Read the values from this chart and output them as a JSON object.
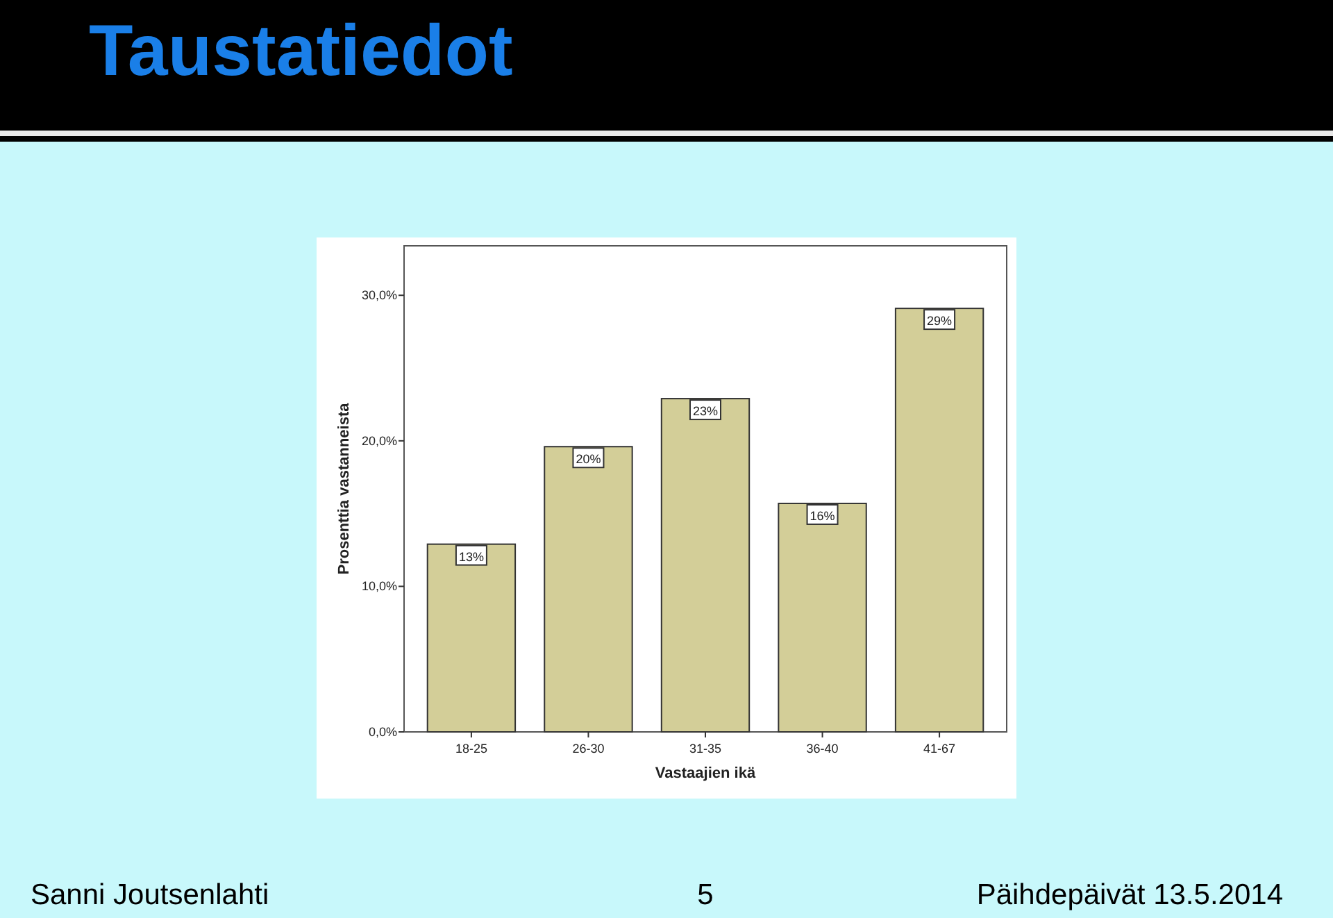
{
  "chart_data": {
    "type": "bar",
    "title": "Taustatiedot",
    "xlabel": "Vastaajien ikä",
    "ylabel": "Prosenttia vastanneista",
    "categories": [
      "18-25",
      "26-30",
      "31-35",
      "36-40",
      "41-67"
    ],
    "values": [
      12.9,
      19.6,
      22.9,
      15.7,
      29.1
    ],
    "value_labels": [
      "13%",
      "20%",
      "23%",
      "16%",
      "29%"
    ],
    "color": "#d3ce98",
    "ylim": [
      0,
      33.4
    ],
    "yticks": [
      {
        "value": 0,
        "label": "0,0%"
      },
      {
        "value": 10,
        "label": "10,0%"
      },
      {
        "value": 20,
        "label": "20,0%"
      },
      {
        "value": 30,
        "label": "30,0%"
      }
    ],
    "grid": false,
    "annotations": [
      "Sanni Joutsenlahti",
      "5",
      "Päihdepäivät 13.5.2014"
    ]
  }
}
